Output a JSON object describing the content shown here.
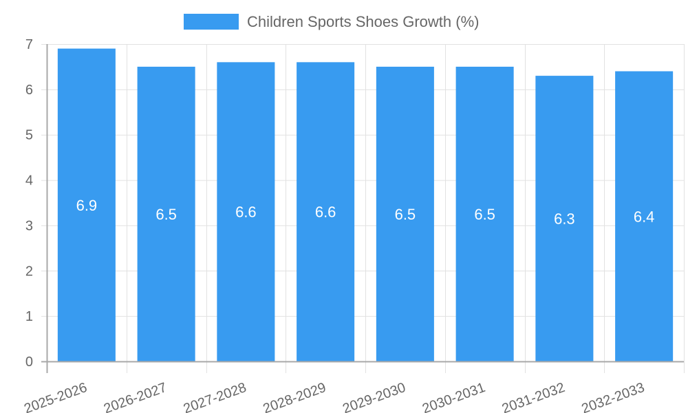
{
  "chart_data": {
    "type": "bar",
    "title": "",
    "xlabel": "",
    "ylabel": "",
    "categories": [
      "2025-2026",
      "2026-2027",
      "2027-2028",
      "2028-2029",
      "2029-2030",
      "2030-2031",
      "2031-2032",
      "2032-2033"
    ],
    "series": [
      {
        "name": "Children Sports Shoes Growth (%)",
        "values": [
          6.9,
          6.5,
          6.6,
          6.6,
          6.5,
          6.5,
          6.3,
          6.4
        ],
        "color": "#389BF0"
      }
    ],
    "ylim": [
      0,
      7
    ],
    "yticks": [
      0,
      1,
      2,
      3,
      4,
      5,
      6,
      7
    ],
    "grid": true,
    "legend_position": "top",
    "data_labels": true,
    "data_label_color": "#ffffff",
    "x_tick_rotation": -20
  },
  "legend": {
    "label": "Children Sports Shoes Growth (%)",
    "color": "#389BF0"
  }
}
